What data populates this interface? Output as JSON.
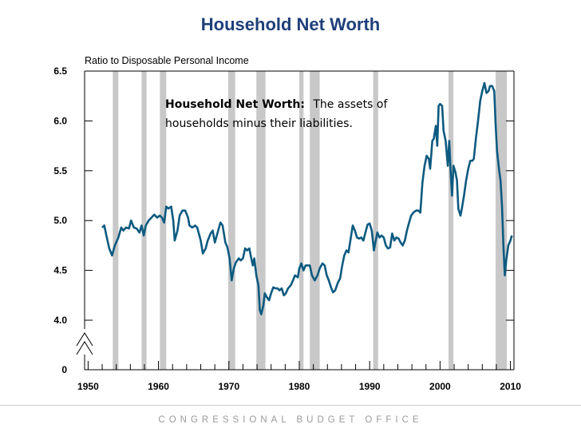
{
  "title": "Household Net Worth",
  "footer": "CONGRESSIONAL BUDGET OFFICE",
  "colors": {
    "title": "#1f3f7a",
    "line": "#0d5a80",
    "recession": "#c8c8c8"
  },
  "chart_data": {
    "type": "line",
    "title": "Household Net Worth",
    "ylabel": "Ratio to Disposable Personal Income",
    "xlabel": "",
    "xlim": [
      1949.5,
      2010.5
    ],
    "ylim": [
      4.0,
      6.5
    ],
    "y_zero_label": "0",
    "y_axis_break": true,
    "x_ticks": [
      "1950",
      "1960",
      "1970",
      "1980",
      "1990",
      "2000",
      "2010"
    ],
    "y_ticks": [
      "4.0",
      "4.5",
      "5.0",
      "5.5",
      "6.0",
      "6.5"
    ],
    "annotation": {
      "bold": "Household Net Worth:",
      "rest": "The assets of",
      "line2": "households minus their liabilities."
    },
    "recessions": [
      [
        1953.5,
        1954.3
      ],
      [
        1957.6,
        1958.3
      ],
      [
        1960.2,
        1961.1
      ],
      [
        1969.9,
        1970.9
      ],
      [
        1973.9,
        1975.2
      ],
      [
        1980.0,
        1980.6
      ],
      [
        1981.5,
        1982.9
      ],
      [
        1990.5,
        1991.2
      ],
      [
        2001.2,
        2001.9
      ],
      [
        2007.9,
        2009.5
      ]
    ],
    "series": [
      {
        "name": "Household Net Worth",
        "points": [
          [
            1952.0,
            4.93
          ],
          [
            1952.3,
            4.95
          ],
          [
            1952.6,
            4.85
          ],
          [
            1953.0,
            4.72
          ],
          [
            1953.4,
            4.65
          ],
          [
            1953.8,
            4.75
          ],
          [
            1954.3,
            4.83
          ],
          [
            1954.7,
            4.93
          ],
          [
            1955.0,
            4.9
          ],
          [
            1955.4,
            4.93
          ],
          [
            1955.8,
            4.92
          ],
          [
            1956.1,
            5.0
          ],
          [
            1956.5,
            4.93
          ],
          [
            1956.9,
            4.92
          ],
          [
            1957.3,
            4.88
          ],
          [
            1957.6,
            4.95
          ],
          [
            1957.9,
            4.85
          ],
          [
            1958.2,
            4.95
          ],
          [
            1958.6,
            5.0
          ],
          [
            1959.0,
            5.03
          ],
          [
            1959.4,
            5.06
          ],
          [
            1959.8,
            5.03
          ],
          [
            1960.2,
            5.05
          ],
          [
            1960.5,
            5.03
          ],
          [
            1960.8,
            4.98
          ],
          [
            1961.1,
            5.14
          ],
          [
            1961.4,
            5.12
          ],
          [
            1961.8,
            5.14
          ],
          [
            1962.1,
            5.0
          ],
          [
            1962.3,
            4.8
          ],
          [
            1962.7,
            4.9
          ],
          [
            1963.0,
            5.05
          ],
          [
            1963.4,
            5.1
          ],
          [
            1963.8,
            5.1
          ],
          [
            1964.2,
            5.03
          ],
          [
            1964.4,
            4.95
          ],
          [
            1964.8,
            4.93
          ],
          [
            1965.2,
            4.95
          ],
          [
            1965.5,
            4.93
          ],
          [
            1965.8,
            4.85
          ],
          [
            1966.0,
            4.8
          ],
          [
            1966.3,
            4.67
          ],
          [
            1966.7,
            4.72
          ],
          [
            1967.0,
            4.8
          ],
          [
            1967.4,
            4.87
          ],
          [
            1967.7,
            4.9
          ],
          [
            1968.0,
            4.78
          ],
          [
            1968.4,
            4.88
          ],
          [
            1968.8,
            4.98
          ],
          [
            1969.1,
            4.95
          ],
          [
            1969.5,
            4.78
          ],
          [
            1969.8,
            4.73
          ],
          [
            1970.1,
            4.62
          ],
          [
            1970.4,
            4.4
          ],
          [
            1970.7,
            4.52
          ],
          [
            1971.0,
            4.58
          ],
          [
            1971.4,
            4.62
          ],
          [
            1971.7,
            4.6
          ],
          [
            1972.0,
            4.62
          ],
          [
            1972.3,
            4.72
          ],
          [
            1972.6,
            4.7
          ],
          [
            1972.9,
            4.72
          ],
          [
            1973.1,
            4.65
          ],
          [
            1973.4,
            4.55
          ],
          [
            1973.6,
            4.62
          ],
          [
            1973.9,
            4.45
          ],
          [
            1974.2,
            4.35
          ],
          [
            1974.4,
            4.1
          ],
          [
            1974.6,
            4.06
          ],
          [
            1974.9,
            4.15
          ],
          [
            1975.1,
            4.27
          ],
          [
            1975.4,
            4.23
          ],
          [
            1975.7,
            4.2
          ],
          [
            1976.0,
            4.27
          ],
          [
            1976.3,
            4.33
          ],
          [
            1976.6,
            4.32
          ],
          [
            1976.9,
            4.32
          ],
          [
            1977.2,
            4.3
          ],
          [
            1977.5,
            4.32
          ],
          [
            1977.8,
            4.25
          ],
          [
            1978.1,
            4.27
          ],
          [
            1978.4,
            4.32
          ],
          [
            1978.8,
            4.35
          ],
          [
            1979.1,
            4.4
          ],
          [
            1979.4,
            4.45
          ],
          [
            1979.8,
            4.43
          ],
          [
            1980.0,
            4.52
          ],
          [
            1980.3,
            4.57
          ],
          [
            1980.6,
            4.5
          ],
          [
            1980.9,
            4.55
          ],
          [
            1981.2,
            4.55
          ],
          [
            1981.5,
            4.55
          ],
          [
            1981.8,
            4.45
          ],
          [
            1982.2,
            4.4
          ],
          [
            1982.6,
            4.45
          ],
          [
            1982.9,
            4.52
          ],
          [
            1983.3,
            4.57
          ],
          [
            1983.6,
            4.55
          ],
          [
            1983.9,
            4.45
          ],
          [
            1984.2,
            4.4
          ],
          [
            1984.5,
            4.33
          ],
          [
            1984.8,
            4.28
          ],
          [
            1985.1,
            4.3
          ],
          [
            1985.5,
            4.38
          ],
          [
            1985.8,
            4.42
          ],
          [
            1986.1,
            4.55
          ],
          [
            1986.4,
            4.65
          ],
          [
            1986.7,
            4.7
          ],
          [
            1987.0,
            4.68
          ],
          [
            1987.3,
            4.82
          ],
          [
            1987.6,
            4.95
          ],
          [
            1987.9,
            4.9
          ],
          [
            1988.2,
            4.83
          ],
          [
            1988.5,
            4.82
          ],
          [
            1988.8,
            4.83
          ],
          [
            1989.1,
            4.8
          ],
          [
            1989.4,
            4.88
          ],
          [
            1989.7,
            4.96
          ],
          [
            1990.0,
            4.97
          ],
          [
            1990.3,
            4.9
          ],
          [
            1990.6,
            4.7
          ],
          [
            1990.8,
            4.78
          ],
          [
            1991.1,
            4.88
          ],
          [
            1991.4,
            4.83
          ],
          [
            1991.7,
            4.85
          ],
          [
            1992.0,
            4.83
          ],
          [
            1992.3,
            4.75
          ],
          [
            1992.6,
            4.72
          ],
          [
            1992.9,
            4.73
          ],
          [
            1993.2,
            4.87
          ],
          [
            1993.5,
            4.8
          ],
          [
            1993.8,
            4.83
          ],
          [
            1994.1,
            4.82
          ],
          [
            1994.4,
            4.78
          ],
          [
            1994.7,
            4.75
          ],
          [
            1995.0,
            4.8
          ],
          [
            1995.3,
            4.9
          ],
          [
            1995.6,
            4.98
          ],
          [
            1995.9,
            5.05
          ],
          [
            1996.2,
            5.08
          ],
          [
            1996.6,
            5.1
          ],
          [
            1996.9,
            5.1
          ],
          [
            1997.2,
            5.08
          ],
          [
            1997.5,
            5.38
          ],
          [
            1997.8,
            5.55
          ],
          [
            1998.1,
            5.65
          ],
          [
            1998.4,
            5.62
          ],
          [
            1998.6,
            5.52
          ],
          [
            1998.9,
            5.8
          ],
          [
            1999.1,
            5.82
          ],
          [
            1999.4,
            5.95
          ],
          [
            1999.6,
            5.75
          ],
          [
            1999.8,
            6.15
          ],
          [
            2000.0,
            6.17
          ],
          [
            2000.3,
            6.15
          ],
          [
            2000.5,
            5.9
          ],
          [
            2000.8,
            5.8
          ],
          [
            2001.1,
            5.55
          ],
          [
            2001.3,
            5.8
          ],
          [
            2001.5,
            5.5
          ],
          [
            2001.7,
            5.25
          ],
          [
            2001.9,
            5.55
          ],
          [
            2002.2,
            5.48
          ],
          [
            2002.4,
            5.4
          ],
          [
            2002.6,
            5.12
          ],
          [
            2002.9,
            5.05
          ],
          [
            2003.1,
            5.12
          ],
          [
            2003.4,
            5.25
          ],
          [
            2003.7,
            5.4
          ],
          [
            2004.0,
            5.52
          ],
          [
            2004.3,
            5.6
          ],
          [
            2004.6,
            5.6
          ],
          [
            2004.8,
            5.62
          ],
          [
            2005.1,
            5.83
          ],
          [
            2005.4,
            6.0
          ],
          [
            2005.7,
            6.2
          ],
          [
            2006.0,
            6.3
          ],
          [
            2006.3,
            6.38
          ],
          [
            2006.6,
            6.28
          ],
          [
            2006.9,
            6.3
          ],
          [
            2007.1,
            6.35
          ],
          [
            2007.4,
            6.35
          ],
          [
            2007.7,
            6.3
          ],
          [
            2007.9,
            5.95
          ],
          [
            2008.1,
            5.7
          ],
          [
            2008.4,
            5.5
          ],
          [
            2008.6,
            5.4
          ],
          [
            2008.8,
            5.15
          ],
          [
            2009.0,
            4.75
          ],
          [
            2009.2,
            4.45
          ],
          [
            2009.4,
            4.6
          ],
          [
            2009.7,
            4.75
          ],
          [
            2010.0,
            4.8
          ],
          [
            2010.2,
            4.85
          ]
        ]
      }
    ]
  }
}
